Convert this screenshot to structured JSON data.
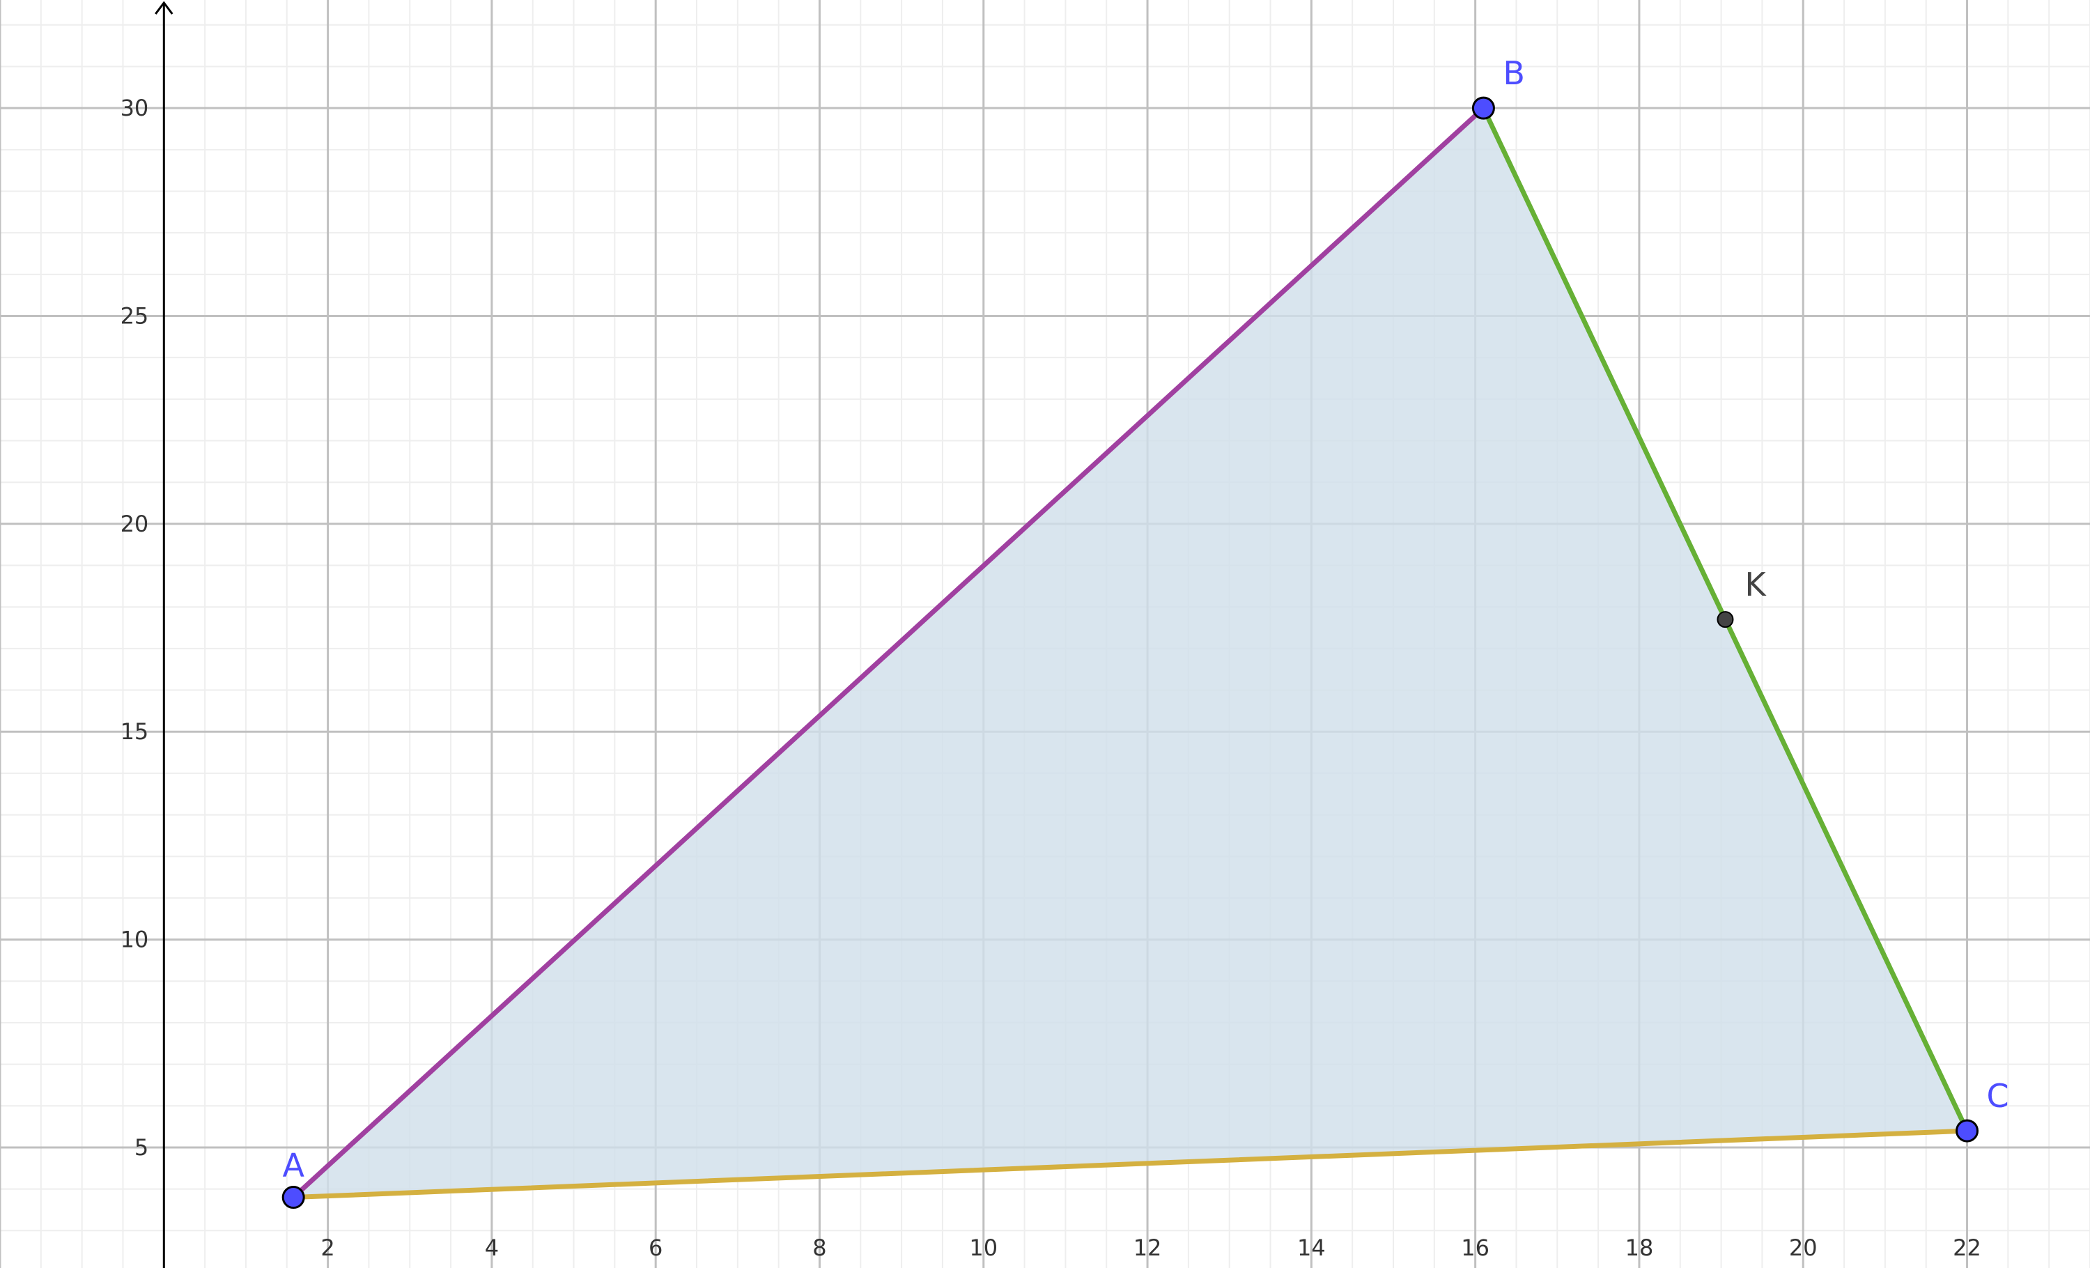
{
  "colors": {
    "background": "#ffffff",
    "grid_minor": "#eeeeee",
    "grid_major": "#c0c0c0",
    "axis": "#000000",
    "polygon_fill": "#cfdeea",
    "side_AB": "#a040a0",
    "side_BC": "#66b035",
    "side_CA": "#d4b040",
    "free_point": "#4d4dff",
    "dependent_point": "#444444"
  },
  "axes": {
    "x_ticks": [
      2,
      4,
      6,
      8,
      10,
      12,
      14,
      16,
      18,
      20,
      22
    ],
    "y_ticks": [
      5,
      10,
      15,
      20,
      25,
      30
    ],
    "x_range": [
      -2.0,
      23.5
    ],
    "y_range": [
      2.1,
      32.6
    ],
    "grid": true
  },
  "points": [
    {
      "name": "A",
      "x": 1.58,
      "y": 3.8,
      "kind": "free",
      "label_offset": "top"
    },
    {
      "name": "B",
      "x": 16.1,
      "y": 30.0,
      "kind": "free",
      "label_offset": "top-right"
    },
    {
      "name": "C",
      "x": 22.0,
      "y": 5.4,
      "kind": "free",
      "label_offset": "top-right"
    },
    {
      "name": "K",
      "x": 19.05,
      "y": 17.7,
      "kind": "dependent",
      "label_offset": "top-right"
    }
  ],
  "segments": [
    {
      "from": "A",
      "to": "B",
      "color_key": "side_AB"
    },
    {
      "from": "B",
      "to": "C",
      "color_key": "side_BC"
    },
    {
      "from": "C",
      "to": "A",
      "color_key": "side_CA"
    }
  ],
  "polygon": [
    "A",
    "B",
    "C"
  ]
}
